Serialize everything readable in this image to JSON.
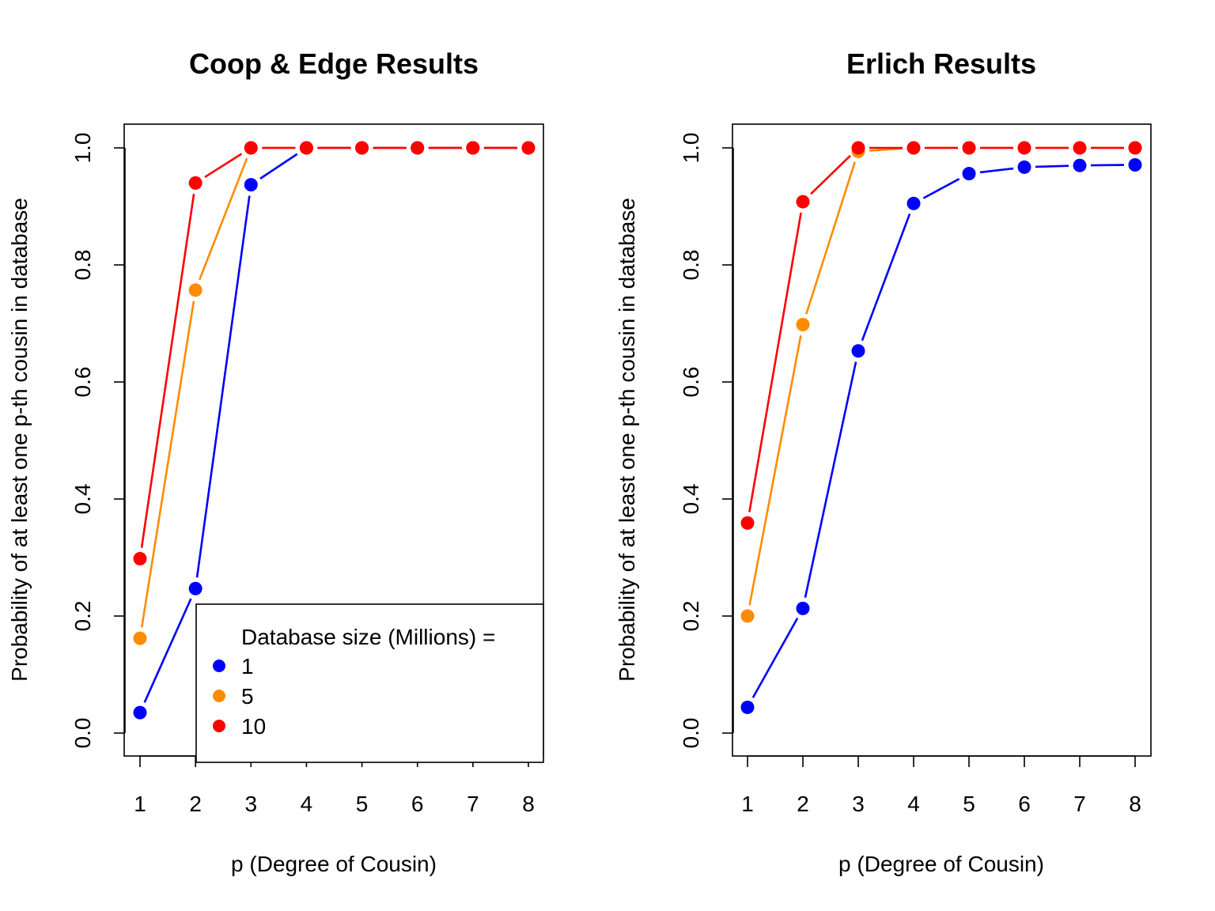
{
  "chart_data": [
    {
      "type": "line",
      "title": "Coop & Edge Results",
      "xlabel": "p (Degree of Cousin)",
      "ylabel": "Probability of at least one p-th cousin in database",
      "x": [
        1,
        2,
        3,
        4,
        5,
        6,
        7,
        8
      ],
      "xticks": [
        "1",
        "2",
        "3",
        "4",
        "5",
        "6",
        "7",
        "8"
      ],
      "yticks": [
        "0.0",
        "0.2",
        "0.4",
        "0.6",
        "0.8",
        "1.0"
      ],
      "ylim": [
        -0.04,
        1.04
      ],
      "grid": false,
      "legend": {
        "title": "Database size (Millions) =",
        "position": "bottom-right",
        "entries": [
          "1",
          "5",
          "10"
        ]
      },
      "series": [
        {
          "name": "1",
          "color": "#0000ff",
          "values": [
            0.035,
            0.247,
            0.937,
            1.0,
            1.0,
            1.0,
            1.0,
            1.0
          ]
        },
        {
          "name": "5",
          "color": "#ff8c00",
          "values": [
            0.162,
            0.757,
            1.0,
            1.0,
            1.0,
            1.0,
            1.0,
            1.0
          ]
        },
        {
          "name": "10",
          "color": "#ff0000",
          "values": [
            0.298,
            0.94,
            1.0,
            1.0,
            1.0,
            1.0,
            1.0,
            1.0
          ]
        }
      ]
    },
    {
      "type": "line",
      "title": "Erlich Results",
      "xlabel": "p (Degree of Cousin)",
      "ylabel": "Probability of at least one p-th cousin in database",
      "x": [
        1,
        2,
        3,
        4,
        5,
        6,
        7,
        8
      ],
      "xticks": [
        "1",
        "2",
        "3",
        "4",
        "5",
        "6",
        "7",
        "8"
      ],
      "yticks": [
        "0.0",
        "0.2",
        "0.4",
        "0.6",
        "0.8",
        "1.0"
      ],
      "ylim": [
        -0.04,
        1.04
      ],
      "grid": false,
      "series": [
        {
          "name": "1",
          "color": "#0000ff",
          "values": [
            0.044,
            0.213,
            0.653,
            0.905,
            0.956,
            0.967,
            0.97,
            0.971
          ]
        },
        {
          "name": "5",
          "color": "#ff8c00",
          "values": [
            0.2,
            0.698,
            0.994,
            1.0,
            1.0,
            1.0,
            1.0,
            1.0
          ]
        },
        {
          "name": "10",
          "color": "#ff0000",
          "values": [
            0.359,
            0.908,
            1.0,
            1.0,
            1.0,
            1.0,
            1.0,
            1.0
          ]
        }
      ]
    }
  ]
}
